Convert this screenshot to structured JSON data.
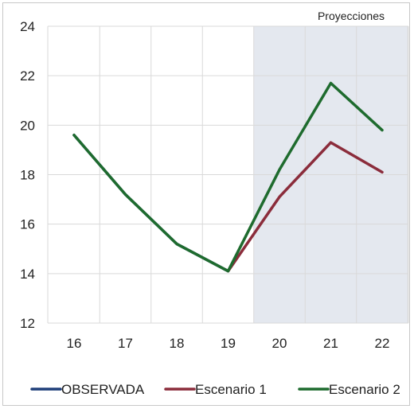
{
  "chart_data": {
    "type": "line",
    "title": "",
    "xlabel": "",
    "ylabel": "",
    "x": [
      "16",
      "17",
      "18",
      "19",
      "20",
      "21",
      "22"
    ],
    "ylim": [
      12,
      24
    ],
    "yticks": [
      12,
      14,
      16,
      18,
      20,
      22,
      24
    ],
    "grid": true,
    "legend_position": "bottom",
    "shaded_region": {
      "from": "19.5",
      "to": "22.5",
      "label": "Proyecciones",
      "color": "#e4e8ef"
    },
    "series": [
      {
        "name": "OBSERVADA",
        "color": "#1f3f7a",
        "values": [
          19.6,
          17.2,
          15.2,
          14.1,
          null,
          null,
          null
        ]
      },
      {
        "name": "Escenario 1",
        "color": "#8b2c3b",
        "values": [
          null,
          null,
          null,
          14.1,
          17.1,
          19.3,
          18.1
        ]
      },
      {
        "name": "Escenario 2",
        "color": "#1e6b2e",
        "values": [
          19.6,
          17.2,
          15.2,
          14.1,
          18.2,
          21.7,
          19.8
        ]
      }
    ]
  }
}
